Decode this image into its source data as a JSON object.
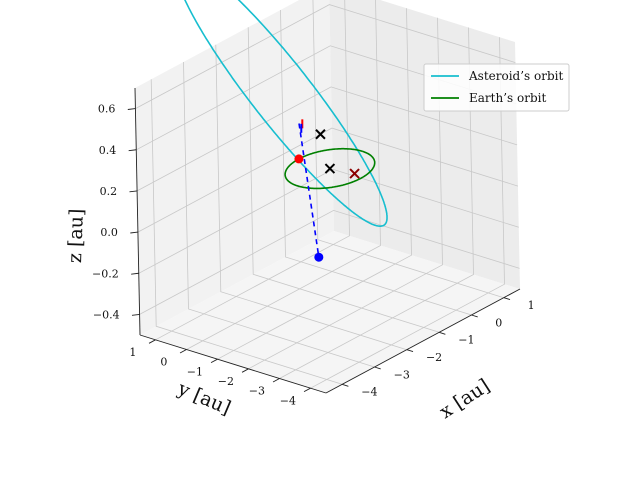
{
  "chart_data": {
    "type": "line3d",
    "title": "",
    "xlabel": "x [au]",
    "ylabel": "y [au]",
    "zlabel": "z [au]",
    "xlim": [
      -4.5,
      1.5
    ],
    "ylim": [
      -4.5,
      1.5
    ],
    "zlim": [
      -0.5,
      0.7
    ],
    "x_ticks": [
      {
        "value": -4,
        "label": "−4"
      },
      {
        "value": -3,
        "label": "−3"
      },
      {
        "value": -2,
        "label": "−2"
      },
      {
        "value": -1,
        "label": "−1"
      },
      {
        "value": 0,
        "label": "0"
      },
      {
        "value": 1,
        "label": "1"
      }
    ],
    "y_ticks": [
      {
        "value": -4,
        "label": "−4"
      },
      {
        "value": -3,
        "label": "−3"
      },
      {
        "value": -2,
        "label": "−2"
      },
      {
        "value": -1,
        "label": "−1"
      },
      {
        "value": 0,
        "label": "0"
      },
      {
        "value": 1,
        "label": "1"
      }
    ],
    "z_ticks": [
      {
        "value": -0.4,
        "label": "−0.4"
      },
      {
        "value": -0.2,
        "label": "−0.2"
      },
      {
        "value": 0.0,
        "label": "0.0"
      },
      {
        "value": 0.2,
        "label": "0.2"
      },
      {
        "value": 0.4,
        "label": "0.4"
      },
      {
        "value": 0.6,
        "label": "0.6"
      }
    ],
    "grid": true,
    "legend_position": "top-right",
    "series": [
      {
        "name": "Asteroid’s orbit",
        "color": "#17becf",
        "kind": "ellipse",
        "semi_major_axis": 2.65,
        "eccentricity": 0.6,
        "inclination_deg": 15,
        "ascending_node_deg": 45,
        "arg_perihelion_deg": 225
      },
      {
        "name": "Earth’s orbit",
        "color": "#008000",
        "kind": "circle",
        "radius": 1.0,
        "inclination_deg": 0
      }
    ],
    "points": [
      {
        "marker": "dot",
        "color": "#ff0000",
        "x": 0.0,
        "y": 1.0,
        "z": 0.0
      },
      {
        "marker": "dot",
        "color": "#0000ff",
        "x": -1.12,
        "y": -0.77,
        "z": -0.3
      },
      {
        "marker": "cross",
        "color": "#000000",
        "x": 0.0,
        "y": 0.0,
        "z": 0.0
      },
      {
        "marker": "cross",
        "color": "#000000",
        "x": 0.25,
        "y": 0.55,
        "z": 0.12
      },
      {
        "marker": "cross",
        "color": "#8b0000",
        "x": -0.05,
        "y": -0.85,
        "z": 0.02
      },
      {
        "marker": "tick",
        "color": "#ff0000",
        "x": 0.05,
        "y": 0.92,
        "z": 0.17
      },
      {
        "marker": "tick",
        "color": "#0000ff",
        "x": -0.05,
        "y": 0.85,
        "z": 0.16
      }
    ],
    "dashed_segments": [
      {
        "color": "#0000ff",
        "from": [
          -0.05,
          0.92,
          0.18
        ],
        "to": [
          -1.12,
          -0.77,
          -0.3
        ]
      }
    ]
  }
}
